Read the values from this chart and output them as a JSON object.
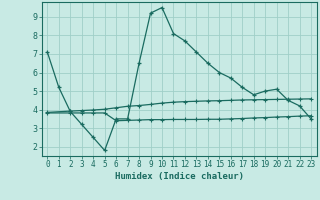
{
  "xlabel": "Humidex (Indice chaleur)",
  "bg_color": "#c8eae4",
  "grid_color": "#a0cfc8",
  "line_color": "#1a6b60",
  "x_ticks": [
    0,
    1,
    2,
    3,
    4,
    5,
    6,
    7,
    8,
    9,
    10,
    11,
    12,
    13,
    14,
    15,
    16,
    17,
    18,
    19,
    20,
    21,
    22,
    23
  ],
  "y_ticks": [
    2,
    3,
    4,
    5,
    6,
    7,
    8,
    9
  ],
  "ylim": [
    1.5,
    9.8
  ],
  "xlim": [
    -0.5,
    23.5
  ],
  "main_x": [
    0,
    1,
    2,
    3,
    4,
    5,
    6,
    7,
    8,
    9,
    10,
    11,
    12,
    13,
    14,
    15,
    16,
    17,
    18,
    19,
    20,
    21,
    22,
    23
  ],
  "main_y": [
    7.1,
    5.2,
    3.9,
    3.2,
    2.5,
    1.8,
    3.5,
    3.5,
    6.5,
    9.2,
    9.5,
    8.1,
    7.7,
    7.1,
    6.5,
    6.0,
    5.7,
    5.2,
    4.8,
    5.0,
    5.1,
    4.5,
    4.2,
    3.5
  ],
  "upper_x": [
    0,
    2,
    3,
    4,
    5,
    6,
    7,
    8,
    9,
    10,
    11,
    12,
    13,
    14,
    15,
    16,
    17,
    18,
    19,
    20,
    21,
    22,
    23
  ],
  "upper_y": [
    3.85,
    3.92,
    3.95,
    3.98,
    4.02,
    4.1,
    4.18,
    4.22,
    4.28,
    4.35,
    4.4,
    4.43,
    4.45,
    4.47,
    4.48,
    4.5,
    4.52,
    4.53,
    4.54,
    4.55,
    4.56,
    4.57,
    4.58
  ],
  "lower_x": [
    0,
    2,
    3,
    4,
    5,
    6,
    7,
    8,
    9,
    10,
    11,
    12,
    13,
    14,
    15,
    16,
    17,
    18,
    19,
    20,
    21,
    22,
    23
  ],
  "lower_y": [
    3.82,
    3.82,
    3.82,
    3.82,
    3.82,
    3.4,
    3.42,
    3.44,
    3.46,
    3.46,
    3.47,
    3.47,
    3.47,
    3.48,
    3.48,
    3.5,
    3.52,
    3.55,
    3.57,
    3.6,
    3.62,
    3.65,
    3.67
  ]
}
